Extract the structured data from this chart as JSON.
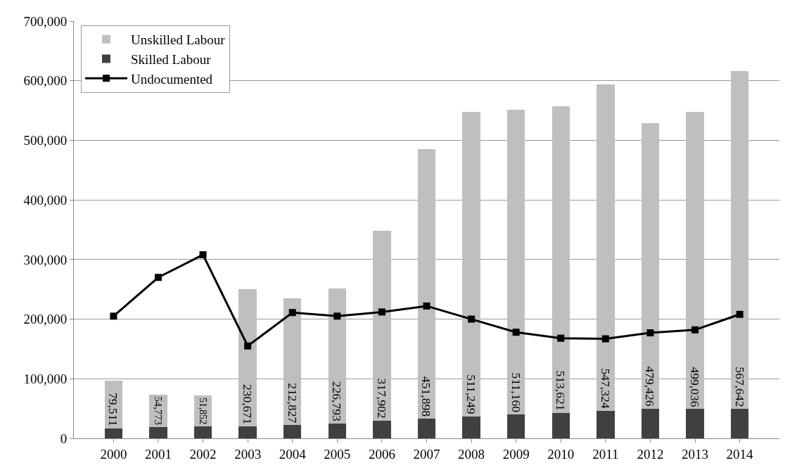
{
  "chart_data": {
    "type": "bar",
    "stacked": true,
    "categories": [
      "2000",
      "2001",
      "2002",
      "2003",
      "2004",
      "2005",
      "2006",
      "2007",
      "2008",
      "2009",
      "2010",
      "2011",
      "2012",
      "2013",
      "2014"
    ],
    "series": [
      {
        "name": "Skilled Labour",
        "color": "#404040",
        "values": [
          17000,
          19000,
          20000,
          20000,
          22000,
          25000,
          30000,
          33000,
          37000,
          40000,
          43000,
          46000,
          50000,
          49000,
          49000
        ]
      },
      {
        "name": "Unskilled Labour",
        "color": "#bfbfbf",
        "values": [
          79511,
          54773,
          51852,
          230671,
          212827,
          226793,
          317902,
          451898,
          511249,
          511160,
          513621,
          547324,
          479426,
          499036,
          567642
        ],
        "value_labels": [
          "79,511",
          "54,773",
          "51,852",
          "230,671",
          "212,827",
          "226,793",
          "317,902",
          "451,898",
          "511,249",
          "511,160",
          "513,621",
          "547,324",
          "479,426",
          "499,036",
          "567,642"
        ]
      },
      {
        "name": "Undocumented",
        "type": "line",
        "color": "#000000",
        "marker": "square",
        "line_style": "solid",
        "values": [
          205000,
          270000,
          308000,
          155000,
          211000,
          205000,
          212000,
          222000,
          200000,
          178000,
          168000,
          167000,
          177000,
          182000,
          208000
        ]
      }
    ],
    "ylim": [
      0,
      700000
    ],
    "yticks": [
      {
        "value": 0,
        "label": "0"
      },
      {
        "value": 100000,
        "label": "100,000"
      },
      {
        "value": 200000,
        "label": "200,000"
      },
      {
        "value": 300000,
        "label": "300,000"
      },
      {
        "value": 400000,
        "label": "400,000"
      },
      {
        "value": 500000,
        "label": "500,000"
      },
      {
        "value": 600000,
        "label": "600,000"
      },
      {
        "value": 700000,
        "label": "700,000"
      }
    ],
    "grid": "y",
    "legend": "top left"
  }
}
